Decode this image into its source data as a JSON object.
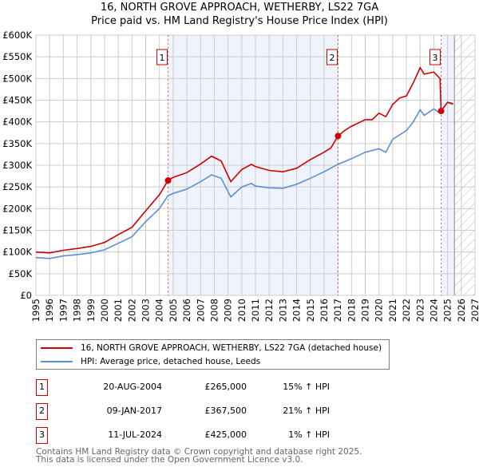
{
  "title": "16, NORTH GROVE APPROACH, WETHERBY, LS22 7GA",
  "subtitle": "Price paid vs. HM Land Registry's House Price Index (HPI)",
  "colors": {
    "price": "#cc0000",
    "hpi": "#5b8fd4",
    "shade": "#eef3fc",
    "grid": "#cccccc"
  },
  "chart_data": {
    "type": "line",
    "title": "16, NORTH GROVE APPROACH, WETHERBY, LS22 7GA",
    "xlim": [
      1995,
      2027
    ],
    "ylim": [
      0,
      600000
    ],
    "x_ticks": [
      "1995",
      "1996",
      "1997",
      "1998",
      "1999",
      "2000",
      "2001",
      "2002",
      "2003",
      "2004",
      "2005",
      "2006",
      "2007",
      "2008",
      "2009",
      "2010",
      "2011",
      "2012",
      "2013",
      "2014",
      "2015",
      "2016",
      "2017",
      "2018",
      "2019",
      "2020",
      "2021",
      "2022",
      "2023",
      "2024",
      "2025",
      "2026",
      "2027"
    ],
    "y_ticks": [
      {
        "v": 0,
        "label": "£0"
      },
      {
        "v": 50000,
        "label": "£50K"
      },
      {
        "v": 100000,
        "label": "£100K"
      },
      {
        "v": 150000,
        "label": "£150K"
      },
      {
        "v": 200000,
        "label": "£200K"
      },
      {
        "v": 250000,
        "label": "£250K"
      },
      {
        "v": 300000,
        "label": "£300K"
      },
      {
        "v": 350000,
        "label": "£350K"
      },
      {
        "v": 400000,
        "label": "£400K"
      },
      {
        "v": 450000,
        "label": "£450K"
      },
      {
        "v": 500000,
        "label": "£500K"
      },
      {
        "v": 550000,
        "label": "£550K"
      },
      {
        "v": 600000,
        "label": "£600K"
      }
    ],
    "shaded_ranges": [
      [
        2004.63,
        2017.02
      ],
      [
        2024.53,
        2025.5
      ]
    ],
    "forecast_hatch_from": 2025.5,
    "series": [
      {
        "name": "16, NORTH GROVE APPROACH, WETHERBY, LS22 7GA (detached house)",
        "x": [
          1995,
          1996,
          1997,
          1998,
          1999,
          2000,
          2001,
          2002,
          2003,
          2004,
          2004.63,
          2005,
          2006,
          2007,
          2007.8,
          2008.5,
          2009.2,
          2010,
          2010.7,
          2011,
          2012,
          2013,
          2014,
          2015,
          2016,
          2016.5,
          2017.02,
          2017.5,
          2018,
          2019,
          2019.5,
          2020,
          2020.5,
          2021,
          2021.5,
          2022,
          2022.5,
          2023,
          2023.3,
          2024,
          2024.45,
          2024.53,
          2025,
          2025.4
        ],
        "y": [
          100000,
          98000,
          104000,
          108000,
          113000,
          122000,
          140000,
          157000,
          195000,
          232000,
          265000,
          272000,
          283000,
          303000,
          321000,
          310000,
          262000,
          290000,
          302000,
          297000,
          288000,
          285000,
          293000,
          313000,
          330000,
          340000,
          367500,
          380000,
          390000,
          405000,
          405000,
          420000,
          412000,
          440000,
          455000,
          460000,
          490000,
          525000,
          510000,
          515000,
          500000,
          425000,
          445000,
          442000
        ]
      },
      {
        "name": "HPI: Average price, detached house, Leeds",
        "x": [
          1995,
          1996,
          1997,
          1998,
          1999,
          2000,
          2001,
          2002,
          2003,
          2004,
          2004.63,
          2005,
          2006,
          2007,
          2007.8,
          2008.5,
          2009.2,
          2010,
          2010.7,
          2011,
          2012,
          2013,
          2014,
          2015,
          2016,
          2017,
          2018,
          2019,
          2020,
          2020.5,
          2021,
          2022,
          2022.5,
          2023,
          2023.3,
          2024,
          2024.45,
          2024.53,
          2025,
          2025.4
        ],
        "y": [
          87000,
          85000,
          91000,
          94000,
          98000,
          105000,
          120000,
          135000,
          170000,
          200000,
          230000,
          235000,
          245000,
          262000,
          278000,
          270000,
          227000,
          250000,
          258000,
          252000,
          248000,
          247000,
          256000,
          270000,
          285000,
          302000,
          315000,
          330000,
          338000,
          330000,
          360000,
          380000,
          400000,
          428000,
          415000,
          430000,
          420000,
          425000,
          445000,
          440000
        ]
      }
    ],
    "sales": [
      {
        "id": "1",
        "x": 2004.63,
        "y": 265000
      },
      {
        "id": "2",
        "x": 2017.02,
        "y": 367500
      },
      {
        "id": "3",
        "x": 2024.53,
        "y": 425000
      }
    ]
  },
  "legend": {
    "price": "16, NORTH GROVE APPROACH, WETHERBY, LS22 7GA (detached house)",
    "hpi": "HPI: Average price, detached house, Leeds"
  },
  "transactions": [
    {
      "id": "1",
      "date": "20-AUG-2004",
      "price": "£265,000",
      "pct": "15% ↑ HPI"
    },
    {
      "id": "2",
      "date": "09-JAN-2017",
      "price": "£367,500",
      "pct": "21% ↑ HPI"
    },
    {
      "id": "3",
      "date": "11-JUL-2024",
      "price": "£425,000",
      "pct": "1% ↑ HPI"
    }
  ],
  "footer": {
    "line1": "Contains HM Land Registry data © Crown copyright and database right 2025.",
    "line2": "This data is licensed under the Open Government Licence v3.0."
  }
}
